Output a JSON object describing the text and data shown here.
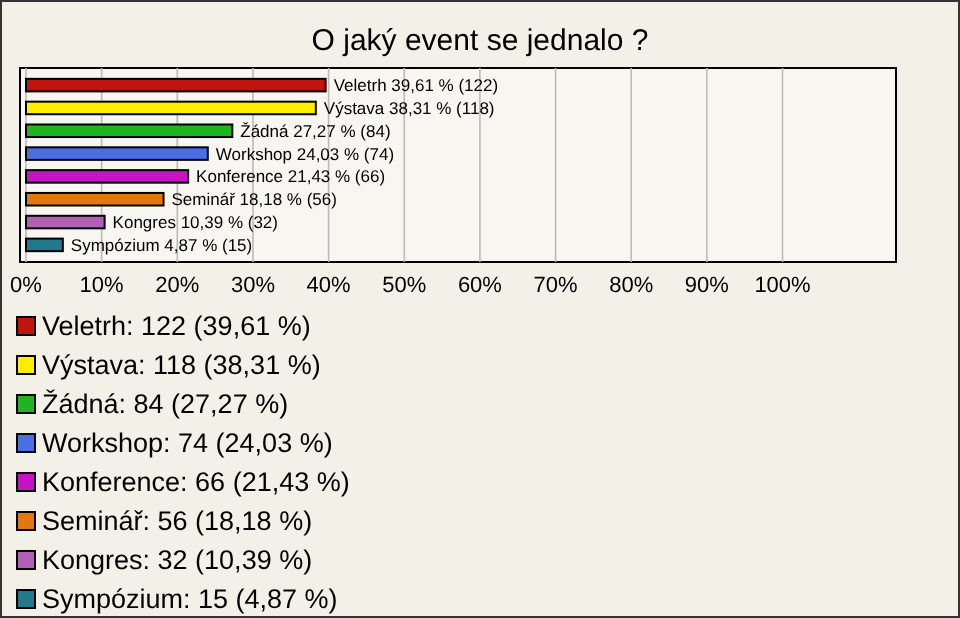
{
  "chart_data": {
    "type": "bar",
    "title": "O jaký event se jednalo ?",
    "orientation": "horizontal",
    "categories": [
      null,
      null,
      null,
      null,
      null,
      null,
      null,
      null
    ],
    "series": [
      {
        "name": "Veletrh: 122 (39,61 %)",
        "color": "#c0150f",
        "values": [
          39.61,
          null,
          null,
          null,
          null,
          null,
          null,
          null
        ],
        "value_labels": [
          "Veletrh 39,61 % (122)",
          null,
          null,
          null,
          null,
          null,
          null,
          null
        ]
      },
      {
        "name": "Výstava: 118 (38,31 %)",
        "color": "#ffee00",
        "values": [
          null,
          38.31,
          null,
          null,
          null,
          null,
          null,
          null
        ],
        "value_labels": [
          null,
          "Výstava 38,31 % (118)",
          null,
          null,
          null,
          null,
          null,
          null
        ]
      },
      {
        "name": "Žádná: 84 (27,27 %)",
        "color": "#1fb51f",
        "values": [
          null,
          null,
          27.27,
          null,
          null,
          null,
          null,
          null
        ],
        "value_labels": [
          null,
          null,
          "Žádná 27,27 % (84)",
          null,
          null,
          null,
          null,
          null
        ]
      },
      {
        "name": "Workshop: 74 (24,03 %)",
        "color": "#4a6fe3",
        "values": [
          null,
          null,
          null,
          24.03,
          null,
          null,
          null,
          null
        ],
        "value_labels": [
          null,
          null,
          null,
          "Workshop 24,03 % (74)",
          null,
          null,
          null,
          null
        ]
      },
      {
        "name": "Konference: 66 (21,43 %)",
        "color": "#c414c4",
        "values": [
          null,
          null,
          null,
          null,
          21.43,
          null,
          null,
          null
        ],
        "value_labels": [
          null,
          null,
          null,
          null,
          "Konference 21,43 % (66)",
          null,
          null,
          null
        ]
      },
      {
        "name": "Seminář: 56 (18,18 %)",
        "color": "#e07a10",
        "values": [
          null,
          null,
          null,
          null,
          null,
          18.18,
          null,
          null
        ],
        "value_labels": [
          null,
          null,
          null,
          null,
          null,
          "Seminář 18,18 % (56)",
          null,
          null
        ]
      },
      {
        "name": "Kongres: 32 (10,39 %)",
        "color": "#b35fb8",
        "values": [
          null,
          null,
          null,
          null,
          null,
          null,
          10.39,
          null
        ],
        "value_labels": [
          null,
          null,
          null,
          null,
          null,
          null,
          "Kongres 10,39 % (32)",
          null
        ]
      },
      {
        "name": "Sympózium: 15 (4,87 %)",
        "color": "#1f7a8c",
        "values": [
          null,
          null,
          null,
          null,
          null,
          null,
          null,
          4.87
        ],
        "value_labels": [
          null,
          null,
          null,
          null,
          null,
          null,
          null,
          "Sympózium 4,87 % (15)"
        ]
      }
    ],
    "xlim": [
      0,
      115
    ],
    "xticks": [
      {
        "value": 0,
        "label": "0%"
      },
      {
        "value": 10,
        "label": "10%"
      },
      {
        "value": 20,
        "label": "20%"
      },
      {
        "value": 30,
        "label": "30%"
      },
      {
        "value": 40,
        "label": "40%"
      },
      {
        "value": 50,
        "label": "50%"
      },
      {
        "value": 60,
        "label": "60%"
      },
      {
        "value": 70,
        "label": "70%"
      },
      {
        "value": 80,
        "label": "80%"
      },
      {
        "value": 90,
        "label": "90%"
      },
      {
        "value": 100,
        "label": "100%"
      }
    ],
    "grid": "x",
    "legend": "bottom",
    "tick_labels": "x"
  }
}
